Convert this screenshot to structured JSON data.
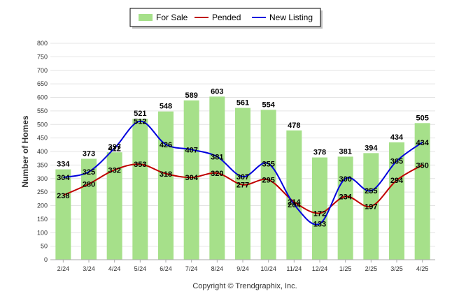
{
  "chart_data": {
    "type": "bar",
    "title": "",
    "xlabel": "",
    "ylabel": "Number of Homes",
    "ylim": [
      0,
      800
    ],
    "yticks": [
      0,
      50,
      100,
      150,
      200,
      250,
      300,
      350,
      400,
      450,
      500,
      550,
      600,
      650,
      700,
      750,
      800
    ],
    "grid": true,
    "legend_position": "top-center",
    "categories": [
      "2/24",
      "3/24",
      "4/24",
      "5/24",
      "6/24",
      "7/24",
      "8/24",
      "9/24",
      "10/24",
      "11/24",
      "12/24",
      "1/25",
      "2/25",
      "3/25",
      "4/25"
    ],
    "series": [
      {
        "name": "For Sale",
        "type": "bar",
        "color": "#a6e08a",
        "values": [
          334,
          373,
          397,
          521,
          548,
          589,
          603,
          561,
          554,
          478,
          378,
          381,
          394,
          434,
          505
        ]
      },
      {
        "name": "Pended",
        "type": "line",
        "color": "#c00000",
        "values": [
          238,
          280,
          332,
          353,
          318,
          304,
          320,
          277,
          295,
          214,
          172,
          234,
          197,
          294,
          350
        ]
      },
      {
        "name": "New Listing",
        "type": "line",
        "color": "#0000dd",
        "values": [
          304,
          325,
          412,
          512,
          426,
          407,
          381,
          307,
          355,
          204,
          133,
          300,
          255,
          365,
          434
        ]
      }
    ]
  },
  "legend": {
    "items": [
      {
        "label": "For Sale",
        "kind": "bar",
        "color": "#a6e08a"
      },
      {
        "label": "Pended",
        "kind": "line",
        "color": "#c00000"
      },
      {
        "label": "New Listing",
        "kind": "line",
        "color": "#0000dd"
      }
    ]
  },
  "copyright": "Copyright © Trendgraphix, Inc."
}
